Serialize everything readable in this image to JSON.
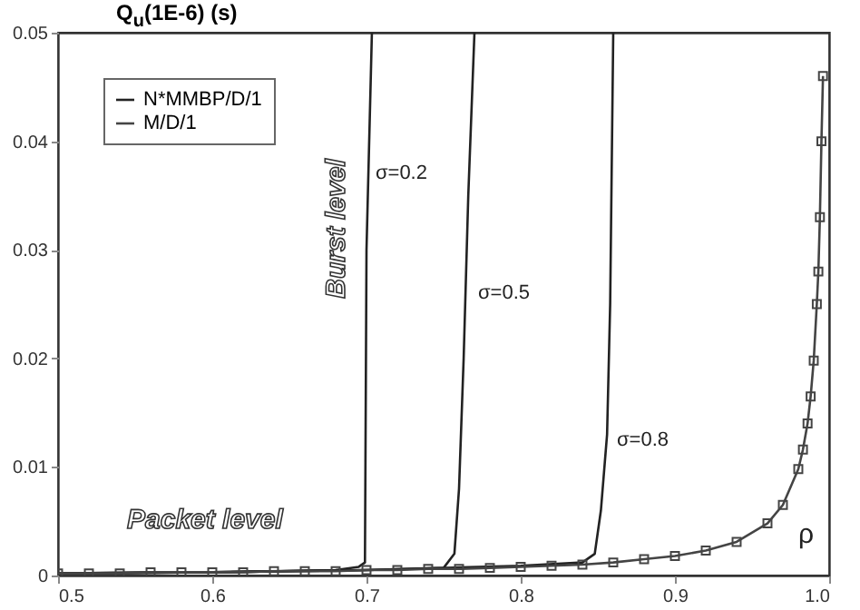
{
  "chart_data": {
    "type": "line",
    "ylabel": "Q$_{u}$(1E-6) (s)",
    "xlabel": "ρ",
    "xlim": [
      0.5,
      1.0
    ],
    "xticks": [
      0.5,
      0.6,
      0.7,
      0.8,
      0.9,
      {
        "value": 1.0,
        "label": "1.0"
      }
    ],
    "ylim": [
      0,
      0.05
    ],
    "yticks": [
      0,
      0.01,
      0.02,
      0.03,
      0.04,
      0.05
    ],
    "legend": "top left",
    "grid": false,
    "series": [
      {
        "name": "N*MMBP/D/1",
        "color": "#222222",
        "marker": "none",
        "x": [
          0.5,
          0.6,
          0.68,
          0.695,
          0.699,
          0.7,
          0.7035
        ],
        "values": [
          0.0002,
          0.0003,
          0.0005,
          0.0008,
          0.0012,
          0.03,
          0.05
        ]
      },
      {
        "color": "#222222",
        "marker": "none",
        "x": [
          0.5,
          0.6,
          0.7,
          0.75,
          0.757,
          0.76,
          0.763,
          0.766,
          0.77
        ],
        "values": [
          0.0002,
          0.0003,
          0.0005,
          0.0007,
          0.002,
          0.008,
          0.02,
          0.035,
          0.05
        ]
      },
      {
        "color": "#222222",
        "marker": "none",
        "x": [
          0.5,
          0.6,
          0.7,
          0.8,
          0.84,
          0.848,
          0.852,
          0.856,
          0.858,
          0.86
        ],
        "values": [
          0.0002,
          0.0003,
          0.0005,
          0.0009,
          0.0012,
          0.002,
          0.006,
          0.013,
          0.025,
          0.05
        ]
      },
      {
        "name": "M/D/1",
        "color": "#444444",
        "marker": "square",
        "x": [
          0.5,
          0.52,
          0.54,
          0.56,
          0.58,
          0.6,
          0.62,
          0.64,
          0.66,
          0.68,
          0.7,
          0.72,
          0.74,
          0.76,
          0.78,
          0.8,
          0.82,
          0.84,
          0.86,
          0.88,
          0.9,
          0.92,
          0.94,
          0.96,
          0.97,
          0.98,
          0.983,
          0.986,
          0.988,
          0.99,
          0.992,
          0.993,
          0.994,
          0.995,
          0.996
        ],
        "values": [
          0.0002,
          0.0002,
          0.0002,
          0.0003,
          0.0003,
          0.0003,
          0.0003,
          0.0004,
          0.0004,
          0.0004,
          0.0005,
          0.0005,
          0.0006,
          0.0006,
          0.0007,
          0.0008,
          0.0009,
          0.001,
          0.0012,
          0.0015,
          0.0018,
          0.0023,
          0.0031,
          0.0048,
          0.0065,
          0.0098,
          0.0116,
          0.014,
          0.0165,
          0.0198,
          0.025,
          0.028,
          0.033,
          0.04,
          0.046
        ]
      }
    ],
    "annotations": [
      {
        "text": "σ=0.2",
        "x": 0.7035,
        "y": 0.037
      },
      {
        "text": "σ=0.5",
        "x": 0.77,
        "y": 0.026
      },
      {
        "text": "σ=0.8",
        "x": 0.86,
        "y": 0.0125
      },
      "Burst level",
      "Packet level"
    ]
  }
}
